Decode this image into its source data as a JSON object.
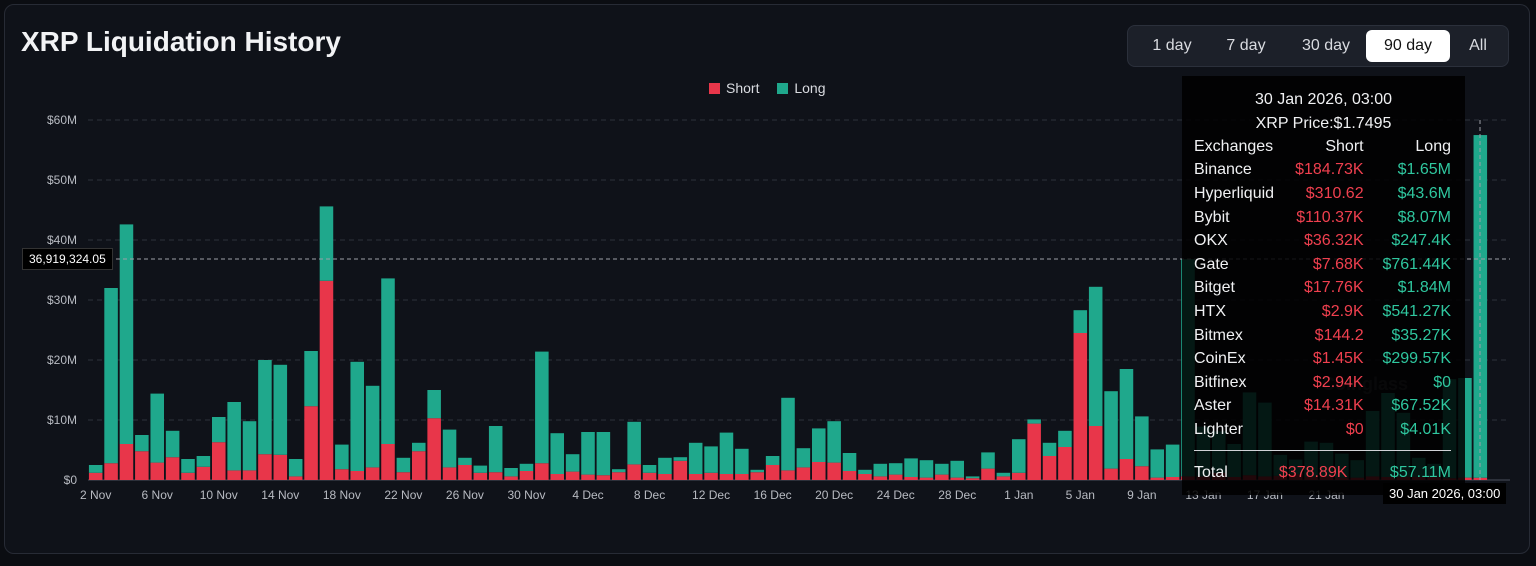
{
  "header": {
    "title": "XRP Liquidation History"
  },
  "range_selector": {
    "options": [
      "1 day",
      "7 day",
      "30 day",
      "90 day",
      "All"
    ],
    "active": "90 day"
  },
  "colors": {
    "short": "#e8364a",
    "long": "#1fa88c",
    "background": "#0f1219"
  },
  "crosshair": {
    "y_value_label": "36,919,324.05",
    "x_value_label": "30 Jan 2026, 03:00"
  },
  "watermark": "Coinglass",
  "tooltip": {
    "date": "30 Jan 2026, 03:00",
    "price": "XRP Price:$1.7495",
    "header": {
      "exchange": "Exchanges",
      "short": "Short",
      "long": "Long"
    },
    "rows": [
      {
        "exchange": "Binance",
        "short": "$184.73K",
        "long": "$1.65M"
      },
      {
        "exchange": "Hyperliquid",
        "short": "$310.62",
        "long": "$43.6M"
      },
      {
        "exchange": "Bybit",
        "short": "$110.37K",
        "long": "$8.07M"
      },
      {
        "exchange": "OKX",
        "short": "$36.32K",
        "long": "$247.4K"
      },
      {
        "exchange": "Gate",
        "short": "$7.68K",
        "long": "$761.44K"
      },
      {
        "exchange": "Bitget",
        "short": "$17.76K",
        "long": "$1.84M"
      },
      {
        "exchange": "HTX",
        "short": "$2.9K",
        "long": "$541.27K"
      },
      {
        "exchange": "Bitmex",
        "short": "$144.2",
        "long": "$35.27K"
      },
      {
        "exchange": "CoinEx",
        "short": "$1.45K",
        "long": "$299.57K"
      },
      {
        "exchange": "Bitfinex",
        "short": "$2.94K",
        "long": "$0"
      },
      {
        "exchange": "Aster",
        "short": "$14.31K",
        "long": "$67.52K"
      },
      {
        "exchange": "Lighter",
        "short": "$0",
        "long": "$4.01K"
      }
    ],
    "total": {
      "label": "Total",
      "short": "$378.89K",
      "long": "$57.11M"
    }
  },
  "chart_data": {
    "type": "bar",
    "stacked": true,
    "title": "XRP Liquidation History",
    "legend": {
      "position": "top-center",
      "entries": [
        "Short",
        "Long"
      ]
    },
    "y_ticks": [
      "$0",
      "$10M",
      "$20M",
      "$30M",
      "$40M",
      "$50M",
      "$60M"
    ],
    "ylim": [
      0,
      60
    ],
    "y_unit": "M USD",
    "grid": true,
    "x_tick_labels": [
      "2 Nov",
      "6 Nov",
      "10 Nov",
      "14 Nov",
      "18 Nov",
      "22 Nov",
      "26 Nov",
      "30 Nov",
      "4 Dec",
      "8 Dec",
      "12 Dec",
      "16 Dec",
      "20 Dec",
      "24 Dec",
      "28 Dec",
      "1 Jan",
      "5 Jan",
      "9 Jan",
      "13 Jan",
      "17 Jan",
      "21 Jan",
      "30 Jan 2026, 03:00"
    ],
    "tick_every": 4,
    "series": [
      {
        "name": "Short",
        "values": [
          1.2,
          2.8,
          6.0,
          4.8,
          2.9,
          3.8,
          1.2,
          2.2,
          6.3,
          1.6,
          1.6,
          4.3,
          4.2,
          0.6,
          12.3,
          33.2,
          1.8,
          1.5,
          2.1,
          6.0,
          1.3,
          4.8,
          10.3,
          2.1,
          2.5,
          1.2,
          1.3,
          0.6,
          1.5,
          2.8,
          1.0,
          1.4,
          0.9,
          0.8,
          1.3,
          2.6,
          1.2,
          1.0,
          3.2,
          1.0,
          1.2,
          1.0,
          1.0,
          1.3,
          2.5,
          1.6,
          2.1,
          3.0,
          2.9,
          1.5,
          1.0,
          0.6,
          0.9,
          0.5,
          0.4,
          0.9,
          0.4,
          0.3,
          1.9,
          0.6,
          1.2,
          9.4,
          4.0,
          5.5,
          24.5,
          9.0,
          1.9,
          3.5,
          2.3,
          0.4,
          0.5,
          0.6,
          0.6,
          1.2,
          0.5,
          0.8,
          0.6,
          0.7,
          1.0,
          0.5,
          0.6,
          0.4,
          0.4,
          0.6,
          0.5,
          0.5,
          0.5,
          0.5,
          0.3,
          0.4,
          0.38
        ],
        "color": "#e8364a"
      },
      {
        "name": "Long",
        "values": [
          1.3,
          29.2,
          36.6,
          2.7,
          11.5,
          4.4,
          2.3,
          1.8,
          4.2,
          11.4,
          8.2,
          15.7,
          15.0,
          2.9,
          9.2,
          12.4,
          4.1,
          18.2,
          13.6,
          27.6,
          2.4,
          1.4,
          4.7,
          6.3,
          1.2,
          1.2,
          7.7,
          1.4,
          1.2,
          18.6,
          6.8,
          2.9,
          7.1,
          7.2,
          0.5,
          7.1,
          1.3,
          2.7,
          0.6,
          5.2,
          4.4,
          6.9,
          4.2,
          0.4,
          1.5,
          12.1,
          3.2,
          5.6,
          6.9,
          3.0,
          0.7,
          2.1,
          1.9,
          3.1,
          2.9,
          1.8,
          2.8,
          0.3,
          2.7,
          0.6,
          5.6,
          0.7,
          2.2,
          2.7,
          3.8,
          23.2,
          12.9,
          15.0,
          8.3,
          4.7,
          5.4,
          36.2,
          8.3,
          6.9,
          5.5,
          13.8,
          12.3,
          3.5,
          2.4,
          5.9,
          5.6,
          4.0,
          2.9,
          10.9,
          14.0,
          10.7,
          3.2,
          2.2,
          16.5,
          16.6,
          57.11
        ],
        "color": "#1fa88c"
      }
    ]
  }
}
